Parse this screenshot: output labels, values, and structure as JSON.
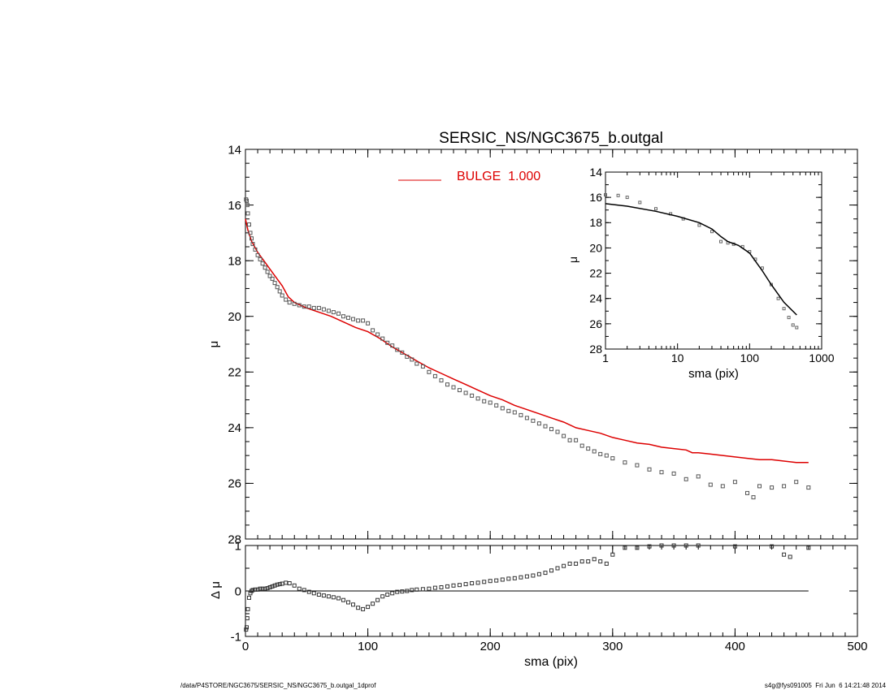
{
  "chart_data": [
    {
      "panel": "main",
      "type": "scatter",
      "title": "SERSIC_NS/NGC3675_b.outgal",
      "xlabel": "",
      "ylabel": "μ",
      "xlim": [
        0,
        500
      ],
      "ylim": [
        28,
        14
      ],
      "y_inverted": true,
      "x_ticks": [
        0,
        100,
        200,
        300,
        400,
        500
      ],
      "y_ticks": [
        14,
        16,
        18,
        20,
        22,
        24,
        26,
        28
      ],
      "legend": {
        "placement": "top-center",
        "entries": [
          {
            "label": "BULGE  1.000",
            "color": "#dd0000"
          }
        ]
      },
      "series": [
        {
          "name": "BULGE  1.000",
          "kind": "line",
          "color": "#dd0000",
          "x": [
            0,
            2,
            5,
            10,
            15,
            20,
            25,
            30,
            35,
            40,
            50,
            60,
            70,
            80,
            90,
            100,
            110,
            120,
            130,
            140,
            150,
            160,
            170,
            180,
            190,
            200,
            210,
            220,
            230,
            240,
            250,
            260,
            270,
            280,
            290,
            300,
            310,
            320,
            330,
            340,
            350,
            360,
            365,
            370,
            380,
            390,
            400,
            410,
            420,
            430,
            440,
            450,
            460
          ],
          "y": [
            16.5,
            16.9,
            17.3,
            17.7,
            18.0,
            18.3,
            18.6,
            18.9,
            19.3,
            19.5,
            19.7,
            19.85,
            20.0,
            20.2,
            20.4,
            20.55,
            20.8,
            21.1,
            21.35,
            21.6,
            21.85,
            22.05,
            22.25,
            22.45,
            22.65,
            22.85,
            23.0,
            23.2,
            23.35,
            23.5,
            23.65,
            23.8,
            24.0,
            24.1,
            24.2,
            24.35,
            24.45,
            24.55,
            24.6,
            24.7,
            24.75,
            24.8,
            24.9,
            24.9,
            24.95,
            25.0,
            25.05,
            25.1,
            25.15,
            25.15,
            25.2,
            25.25,
            25.25
          ]
        },
        {
          "name": "",
          "kind": "points",
          "color": "#555555",
          "x": [
            0.5,
            1,
            1.5,
            2,
            3,
            4,
            5,
            6,
            8,
            10,
            12,
            14,
            16,
            18,
            20,
            22,
            24,
            26,
            28,
            30,
            33,
            36,
            40,
            44,
            48,
            52,
            56,
            60,
            64,
            68,
            72,
            76,
            80,
            84,
            88,
            92,
            96,
            100,
            104,
            108,
            112,
            116,
            120,
            124,
            128,
            132,
            136,
            140,
            145,
            150,
            155,
            160,
            165,
            170,
            175,
            180,
            185,
            190,
            195,
            200,
            205,
            210,
            215,
            220,
            225,
            230,
            235,
            240,
            245,
            250,
            255,
            260,
            265,
            270,
            275,
            280,
            285,
            290,
            295,
            300,
            310,
            320,
            330,
            340,
            350,
            360,
            370,
            380,
            390,
            400,
            410,
            415,
            420,
            430,
            440,
            450,
            460
          ],
          "y": [
            15.8,
            15.85,
            16.0,
            16.3,
            16.7,
            17.0,
            17.2,
            17.4,
            17.6,
            17.8,
            17.95,
            18.1,
            18.25,
            18.4,
            18.55,
            18.65,
            18.8,
            18.95,
            19.1,
            19.25,
            19.4,
            19.5,
            19.55,
            19.6,
            19.65,
            19.65,
            19.7,
            19.7,
            19.75,
            19.8,
            19.85,
            19.9,
            20.0,
            20.05,
            20.1,
            20.15,
            20.15,
            20.25,
            20.5,
            20.65,
            20.8,
            20.95,
            21.05,
            21.2,
            21.3,
            21.45,
            21.55,
            21.7,
            21.8,
            22.0,
            22.15,
            22.3,
            22.45,
            22.55,
            22.65,
            22.75,
            22.85,
            22.95,
            23.05,
            23.1,
            23.2,
            23.3,
            23.4,
            23.45,
            23.55,
            23.65,
            23.75,
            23.85,
            23.95,
            24.05,
            24.15,
            24.3,
            24.45,
            24.45,
            24.65,
            24.75,
            24.85,
            24.95,
            25.0,
            25.1,
            25.25,
            25.35,
            25.5,
            25.6,
            25.65,
            25.85,
            25.75,
            26.05,
            26.1,
            25.95,
            26.35,
            26.5,
            26.1,
            26.15,
            26.1,
            25.95,
            26.15
          ]
        }
      ]
    },
    {
      "panel": "residual",
      "type": "scatter",
      "title": "",
      "xlabel": "sma (pix)",
      "ylabel": "Δ μ",
      "xlim": [
        0,
        500
      ],
      "ylim": [
        -1,
        1
      ],
      "x_ticks": [
        0,
        100,
        200,
        300,
        400,
        500
      ],
      "y_ticks": [
        -1,
        0,
        1
      ],
      "series": [
        {
          "name": "",
          "kind": "reference-line",
          "x": [
            0,
            460
          ],
          "y": [
            0,
            0
          ]
        },
        {
          "name": "",
          "kind": "points",
          "x": [
            0.5,
            1,
            1.5,
            2,
            3,
            4,
            5,
            6,
            8,
            10,
            12,
            14,
            16,
            18,
            20,
            22,
            24,
            26,
            28,
            30,
            33,
            36,
            40,
            44,
            48,
            52,
            56,
            60,
            64,
            68,
            72,
            76,
            80,
            84,
            88,
            92,
            96,
            100,
            104,
            108,
            112,
            116,
            120,
            124,
            128,
            132,
            136,
            140,
            145,
            150,
            155,
            160,
            165,
            170,
            175,
            180,
            185,
            190,
            195,
            200,
            205,
            210,
            215,
            220,
            225,
            230,
            235,
            240,
            245,
            250,
            255,
            260,
            265,
            270,
            275,
            280,
            285,
            290,
            295,
            300,
            310,
            320,
            330,
            340,
            350,
            360,
            370,
            400,
            430,
            440,
            445,
            460
          ],
          "y": [
            -0.85,
            -0.8,
            -0.6,
            -0.4,
            -0.15,
            -0.05,
            0.0,
            0.02,
            0.03,
            0.03,
            0.05,
            0.05,
            0.05,
            0.06,
            0.08,
            0.1,
            0.12,
            0.14,
            0.15,
            0.16,
            0.18,
            0.17,
            0.12,
            0.05,
            0.02,
            -0.02,
            -0.05,
            -0.08,
            -0.1,
            -0.12,
            -0.14,
            -0.16,
            -0.2,
            -0.25,
            -0.3,
            -0.37,
            -0.4,
            -0.35,
            -0.28,
            -0.2,
            -0.12,
            -0.08,
            -0.05,
            -0.02,
            -0.01,
            0.0,
            0.02,
            0.03,
            0.04,
            0.05,
            0.07,
            0.08,
            0.1,
            0.12,
            0.13,
            0.15,
            0.17,
            0.18,
            0.2,
            0.22,
            0.23,
            0.25,
            0.27,
            0.28,
            0.3,
            0.32,
            0.34,
            0.37,
            0.4,
            0.45,
            0.5,
            0.55,
            0.6,
            0.6,
            0.65,
            0.65,
            0.7,
            0.65,
            0.6,
            0.8,
            0.95,
            0.95,
            0.98,
            1.0,
            1.0,
            1.0,
            1.0,
            0.98,
            0.98,
            0.8,
            0.75,
            0.95
          ]
        }
      ]
    },
    {
      "panel": "inset",
      "type": "scatter",
      "title": "",
      "xlabel": "sma (pix)",
      "ylabel": "μ",
      "x_scale": "log",
      "xlim": [
        1,
        1000
      ],
      "ylim": [
        28,
        14
      ],
      "y_inverted": true,
      "x_ticks": [
        1,
        10,
        100,
        1000
      ],
      "y_ticks": [
        14,
        16,
        18,
        20,
        22,
        24,
        26,
        28
      ],
      "series": [
        {
          "name": "",
          "kind": "points",
          "color": "#666666",
          "x": [
            1,
            1.5,
            2,
            3,
            5,
            8,
            12,
            20,
            30,
            40,
            50,
            60,
            80,
            100,
            120,
            150,
            200,
            250,
            300,
            350,
            400,
            450
          ],
          "y": [
            15.8,
            15.85,
            16.0,
            16.4,
            16.9,
            17.3,
            17.7,
            18.2,
            18.7,
            19.5,
            19.6,
            19.7,
            19.9,
            20.3,
            20.9,
            21.6,
            22.9,
            24.0,
            24.8,
            25.5,
            26.1,
            26.3
          ]
        },
        {
          "name": "",
          "kind": "line",
          "color": "#000000",
          "x": [
            1,
            2,
            5,
            10,
            20,
            30,
            40,
            50,
            70,
            100,
            150,
            200,
            300,
            450
          ],
          "y": [
            16.5,
            16.7,
            17.1,
            17.5,
            18.0,
            18.5,
            19.1,
            19.5,
            19.8,
            20.4,
            21.8,
            22.9,
            24.3,
            25.3
          ]
        }
      ]
    }
  ],
  "footer": {
    "left": "/data/P4STORE/NGC3675/SERSIC_NS/NGC3675_b.outgal_1dprof",
    "right": "s4g@fys091005  Fri Jun  6 14:21:48 2014"
  }
}
